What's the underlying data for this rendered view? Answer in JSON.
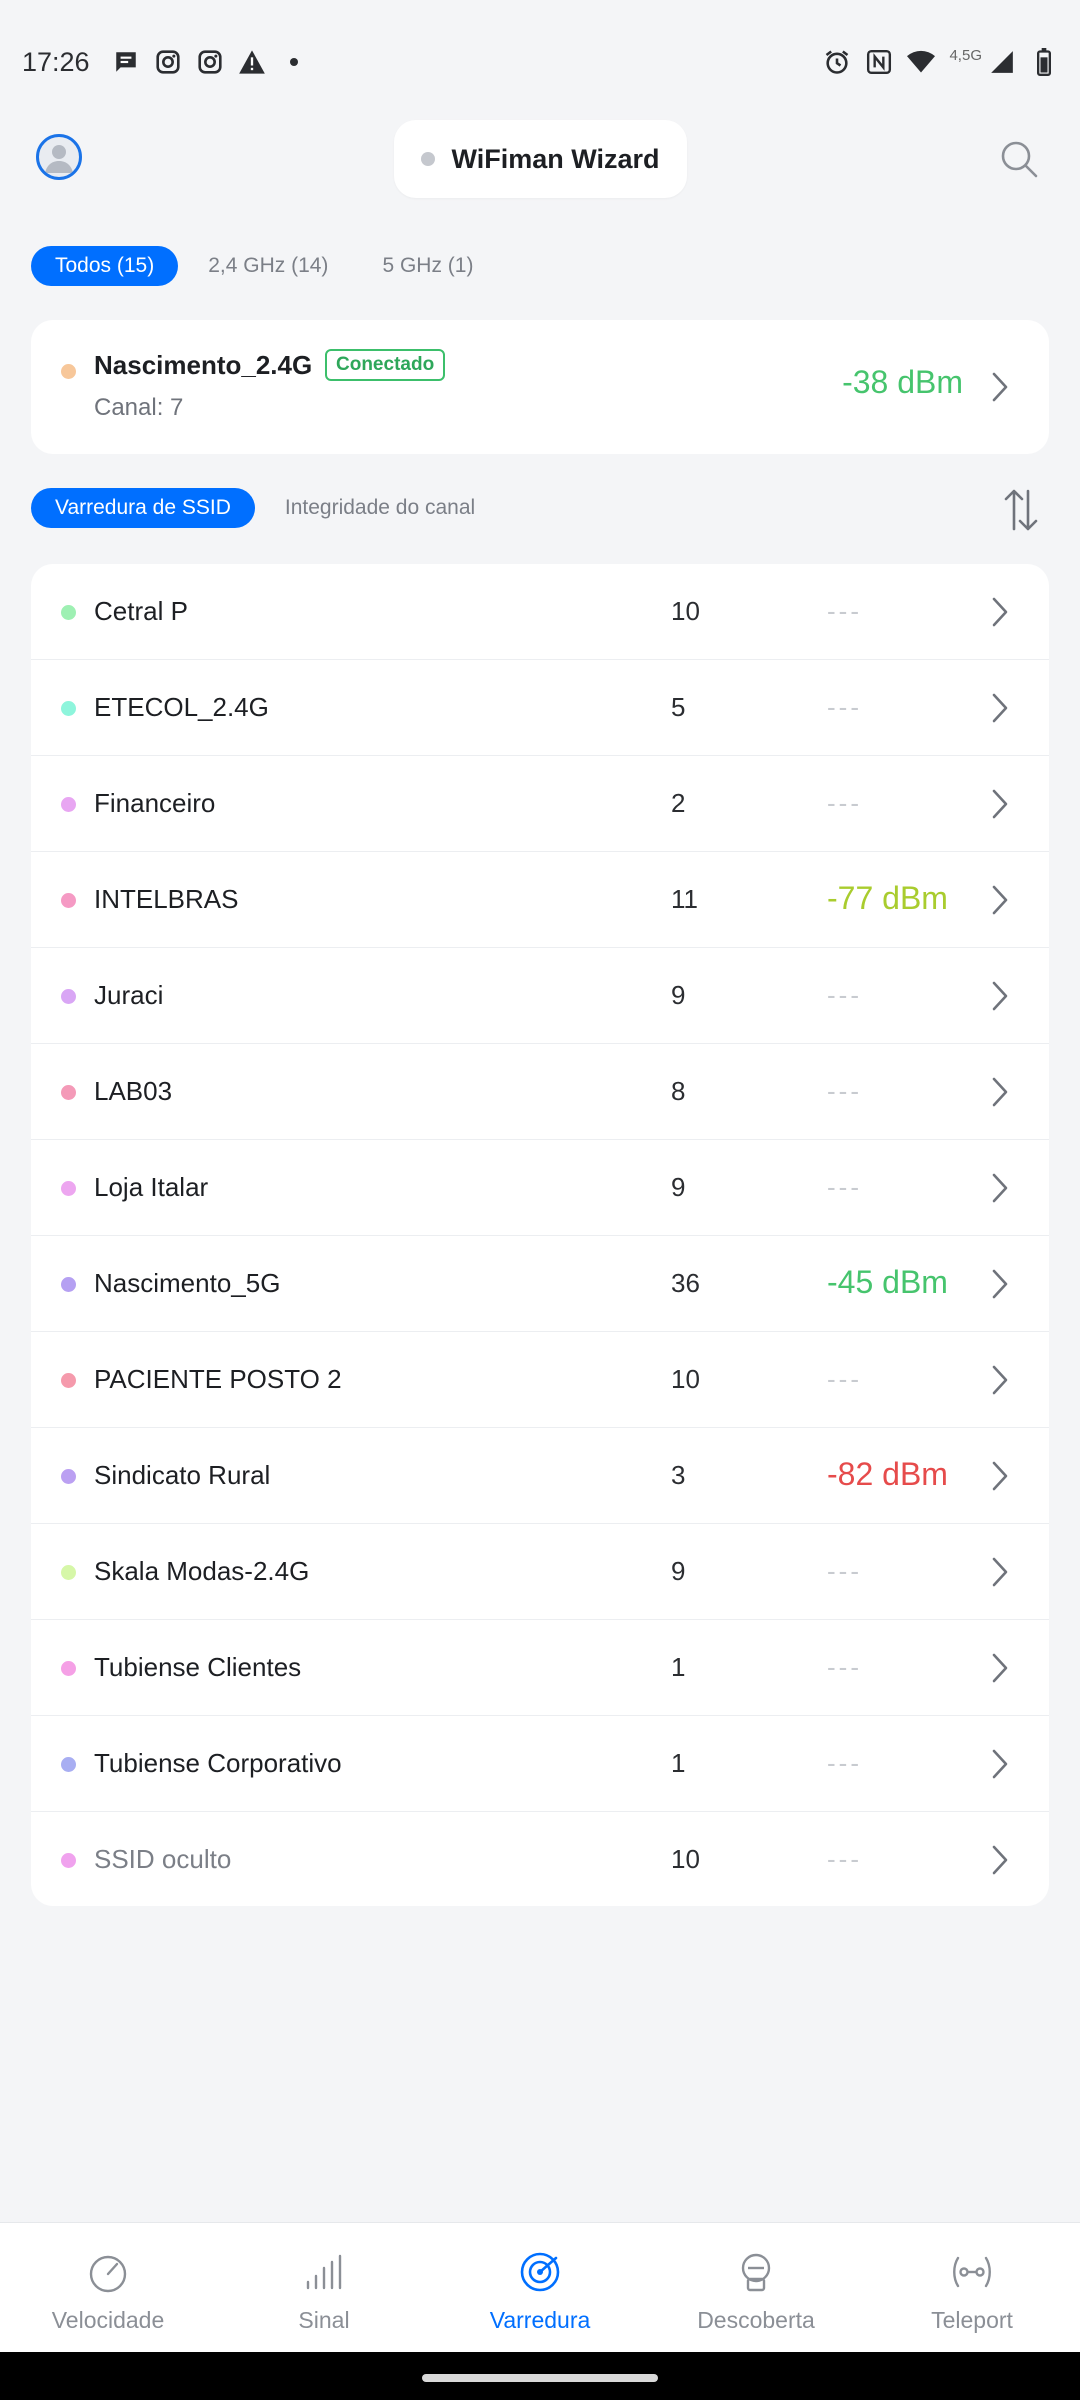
{
  "status_bar": {
    "time": "17:26",
    "network_label": "4,5G",
    "left_icons": [
      "chat-icon",
      "instagram-icon",
      "instagram-icon",
      "warning-icon",
      "dot-icon"
    ],
    "right_icons": [
      "alarm-icon",
      "nfc-icon",
      "wifi-icon",
      "cellular-icon",
      "battery-icon"
    ]
  },
  "header": {
    "title": "WiFiman Wizard",
    "avatar_icon": "user-avatar-icon",
    "search_icon": "search-icon"
  },
  "filter_tabs": [
    {
      "label": "Todos (15)",
      "active": true
    },
    {
      "label": "2,4 GHz (14)",
      "active": false
    },
    {
      "label": "5 GHz (1)",
      "active": false
    }
  ],
  "connected": {
    "name": "Nascimento_2.4G",
    "badge": "Conectado",
    "channel": "Canal: 7",
    "signal": "-38 dBm",
    "dot_color": "#f7c79a",
    "signal_color": "#46c46d"
  },
  "scan_tabs": [
    {
      "label": "Varredura de SSID",
      "active": true
    },
    {
      "label": "Integridade do canal",
      "active": false
    }
  ],
  "networks": [
    {
      "name": "Cetral P",
      "channel": "10",
      "signal": "---",
      "dot_color": "#9ef0b3",
      "signal_color": ""
    },
    {
      "name": "ETECOL_2.4G",
      "channel": "5",
      "signal": "---",
      "dot_color": "#8ef5dc",
      "signal_color": ""
    },
    {
      "name": "Financeiro",
      "channel": "2",
      "signal": "---",
      "dot_color": "#e8a6f2",
      "signal_color": ""
    },
    {
      "name": "INTELBRAS",
      "channel": "11",
      "signal": "-77 dBm",
      "dot_color": "#f59ac4",
      "signal_color": "#a9cc2e"
    },
    {
      "name": "Juraci",
      "channel": "9",
      "signal": "---",
      "dot_color": "#d9a6f5",
      "signal_color": ""
    },
    {
      "name": "LAB03",
      "channel": "8",
      "signal": "---",
      "dot_color": "#f49ab8",
      "signal_color": ""
    },
    {
      "name": "Loja Italar",
      "channel": "9",
      "signal": "---",
      "dot_color": "#eda6f0",
      "signal_color": ""
    },
    {
      "name": "Nascimento_5G",
      "channel": "36",
      "signal": "-45 dBm",
      "dot_color": "#b5a0f2",
      "signal_color": "#46c46d"
    },
    {
      "name": "PACIENTE POSTO 2",
      "channel": "10",
      "signal": "---",
      "dot_color": "#f59aac",
      "signal_color": ""
    },
    {
      "name": "Sindicato Rural",
      "channel": "3",
      "signal": "-82 dBm",
      "dot_color": "#bba0f2",
      "signal_color": "#e64b4b"
    },
    {
      "name": "Skala Modas-2.4G",
      "channel": "9",
      "signal": "---",
      "dot_color": "#d6f7a8",
      "signal_color": ""
    },
    {
      "name": "Tubiense Clientes",
      "channel": "1",
      "signal": "---",
      "dot_color": "#f5a0e6",
      "signal_color": ""
    },
    {
      "name": "Tubiense Corporativo",
      "channel": "1",
      "signal": "---",
      "dot_color": "#a8aef2",
      "signal_color": ""
    },
    {
      "name": "SSID oculto",
      "channel": "10",
      "signal": "---",
      "dot_color": "#f0a2ee",
      "signal_color": "",
      "hidden": true
    }
  ],
  "bottom_nav": [
    {
      "label": "Velocidade",
      "icon": "speedometer-icon",
      "active": false
    },
    {
      "label": "Sinal",
      "icon": "signal-bars-icon",
      "active": false
    },
    {
      "label": "Varredura",
      "icon": "radar-icon",
      "active": true
    },
    {
      "label": "Descoberta",
      "icon": "discovery-icon",
      "active": false
    },
    {
      "label": "Teleport",
      "icon": "teleport-icon",
      "active": false
    }
  ],
  "colors": {
    "accent": "#006fff",
    "background": "#f4f5f7",
    "connected_green": "#3cbf6b"
  }
}
